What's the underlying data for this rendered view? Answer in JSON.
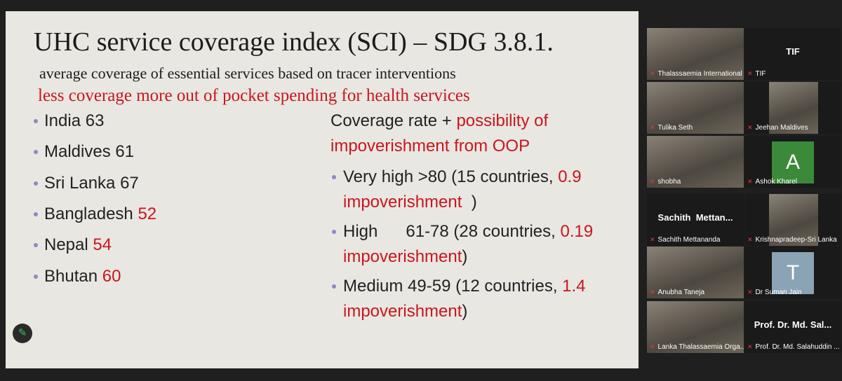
{
  "slide": {
    "title": "UHC service coverage index (SCI) – SDG 3.8.1.",
    "subtitle": "average coverage of essential services based on tracer interventions",
    "note": "less coverage more out of pocket spending for health services",
    "countries": [
      {
        "name": "India",
        "value": 63,
        "highlight": false
      },
      {
        "name": "Maldives",
        "value": 61,
        "highlight": false
      },
      {
        "name": "Sri Lanka",
        "value": 67,
        "highlight": false
      },
      {
        "name": "Bangladesh",
        "value": 52,
        "highlight": true
      },
      {
        "name": "Nepal",
        "value": 54,
        "highlight": true
      },
      {
        "name": "Bhutan",
        "value": 60,
        "highlight": true
      }
    ],
    "heading": {
      "before": "Coverage rate + ",
      "highlight": "possibility of impoverishment from OOP"
    },
    "levels": [
      {
        "before": "Very high >80 (15 countries, ",
        "highlight": "0.9 impoverishment",
        "after": "  )"
      },
      {
        "before": "High      61-78 (28 countries, ",
        "highlight": "0.19 impoverishment",
        "after": ")"
      },
      {
        "before": "Medium 49-59 (12 countries, ",
        "highlight": "1.4 impoverishment",
        "after": ")"
      }
    ]
  },
  "participants": [
    {
      "tile": "video",
      "label": "Thalassaemia International F...",
      "active": true
    },
    {
      "tile": "name",
      "display": "TIF",
      "label": "TIF"
    },
    {
      "tile": "video",
      "label": "Tulika Seth"
    },
    {
      "tile": "video",
      "label": "Jeehan Maldives"
    },
    {
      "tile": "video",
      "label": "shobha"
    },
    {
      "tile": "avatar",
      "display": "A",
      "color": "#3a8a3a",
      "label": "Ashok Kharel"
    },
    {
      "tile": "name",
      "display": "Sachith  Mettan...",
      "label": "Sachith Mettananda"
    },
    {
      "tile": "video",
      "label": "Krishnapradeep-Sri Lanka"
    },
    {
      "tile": "video",
      "label": "Anubha Taneja"
    },
    {
      "tile": "avatar",
      "display": "T",
      "color": "#8aa3b5",
      "label": "Dr Suman Jain"
    },
    {
      "tile": "video",
      "label": "Lanka Thalassaemia Orga..."
    },
    {
      "tile": "name",
      "display": "Prof. Dr. Md. Sal...",
      "label": "Prof. Dr. Md. Salahuddin ..."
    }
  ]
}
